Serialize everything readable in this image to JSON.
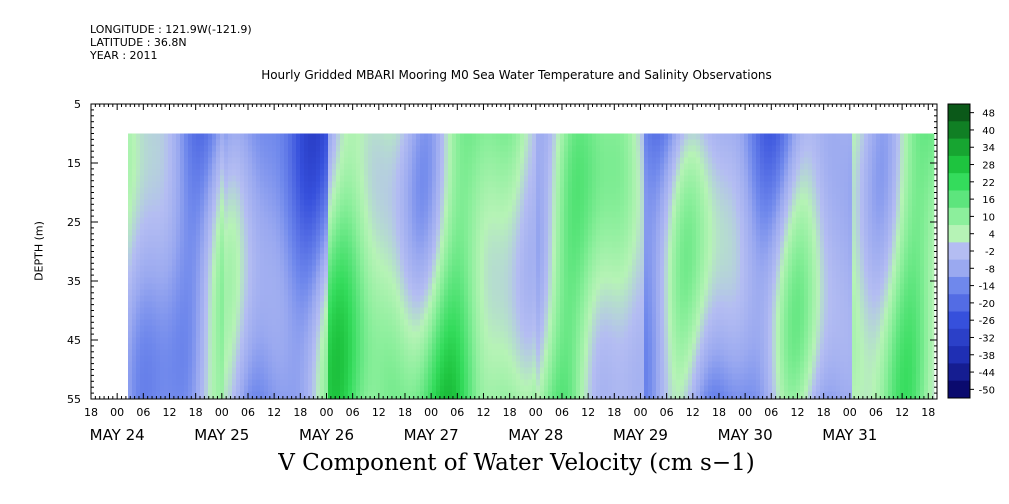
{
  "header": {
    "longitude": "LONGITUDE : 121.9W(-121.9)",
    "latitude": "LATITUDE : 36.8N",
    "year": "YEAR : 2011"
  },
  "chart_data": {
    "type": "heatmap",
    "title": "Hourly Gridded MBARI Mooring M0 Sea Water Temperature and Salinity Observations",
    "xlabel": "V Component of Water Velocity (cm s−1)",
    "ylabel": "DEPTH (m)",
    "y_ticks": [
      5,
      15,
      25,
      35,
      45,
      55
    ],
    "y_range": [
      5,
      55
    ],
    "y_inverted": true,
    "data_depth_range": [
      10,
      55
    ],
    "x_range_hours": [
      "May 23 18:00",
      "May 31 20:00"
    ],
    "x_hour_ticks": [
      "18",
      "00",
      "06",
      "12",
      "18",
      "00",
      "06",
      "12",
      "18",
      "00",
      "06",
      "12",
      "18",
      "00",
      "06",
      "12",
      "18",
      "00",
      "06",
      "12",
      "18",
      "00",
      "06",
      "12",
      "18",
      "00",
      "06",
      "12",
      "18",
      "00",
      "06",
      "12",
      "18"
    ],
    "x_day_labels": [
      "MAY 24",
      "MAY 25",
      "MAY 26",
      "MAY 27",
      "MAY 28",
      "MAY 29",
      "MAY 30",
      "MAY 31"
    ],
    "colorbar_labels": [
      "48",
      "40",
      "34",
      "28",
      "22",
      "16",
      "10",
      "4",
      "-2",
      "-8",
      "-14",
      "-20",
      "-26",
      "-32",
      "-38",
      "-44",
      "-50"
    ],
    "colorbar_range": [
      -50,
      50
    ],
    "grid": false,
    "colors": {
      "very_negative": "#0a0a78",
      "negative": "#4a6ae6",
      "slightly_negative": "#a8b6f0",
      "slightly_positive": "#a8f0a8",
      "positive": "#3ce36a",
      "very_positive": "#0a5a1a"
    },
    "columns": [
      {
        "day": "May 24",
        "dominant": "slightly_negative"
      },
      {
        "day": "May 25",
        "dominant": "negative"
      },
      {
        "day": "May 26",
        "dominant": "positive"
      },
      {
        "day": "May 27",
        "dominant": "positive"
      },
      {
        "day": "May 28",
        "dominant": "slightly_positive"
      },
      {
        "day": "May 29",
        "dominant": "negative"
      },
      {
        "day": "May 30",
        "dominant": "negative"
      },
      {
        "day": "May 31",
        "dominant": "slightly_positive"
      }
    ]
  }
}
